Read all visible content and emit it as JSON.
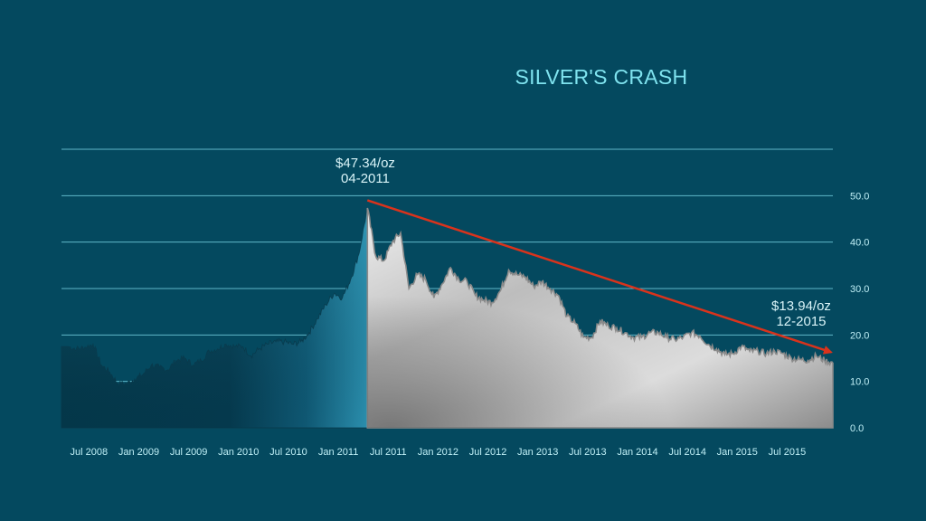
{
  "chart_data": {
    "type": "area",
    "title": "SILVER'S CRASH",
    "xlabel": "",
    "ylabel": "",
    "x_ticks": [
      "Jul 2008",
      "Jan 2009",
      "Jul 2009",
      "Jan 2010",
      "Jul 2010",
      "Jan 2011",
      "Jul 2011",
      "Jan 2012",
      "Jul 2012",
      "Jan 2013",
      "Jul 2013",
      "Jan 2014",
      "Jul 2014",
      "Jan 2015",
      "Jul 2015"
    ],
    "y_ticks": [
      "0.0",
      "10.0",
      "20.0",
      "30.0",
      "40.0",
      "50.0"
    ],
    "ylim": [
      0,
      60
    ],
    "y_axis_position": "right",
    "grid": true,
    "series": [
      {
        "x": [
          "2008-04",
          "2008-05",
          "2008-06",
          "2008-07",
          "2008-08",
          "2008-09",
          "2008-10",
          "2008-11",
          "2008-12",
          "2009-01",
          "2009-02",
          "2009-03",
          "2009-04",
          "2009-05",
          "2009-06",
          "2009-07",
          "2009-08",
          "2009-09",
          "2009-10",
          "2009-11",
          "2009-12",
          "2010-01",
          "2010-02",
          "2010-03",
          "2010-04",
          "2010-05",
          "2010-06",
          "2010-07",
          "2010-08",
          "2010-09",
          "2010-10",
          "2010-11",
          "2010-12",
          "2011-01",
          "2011-02",
          "2011-03",
          "2011-04",
          "2011-05",
          "2011-06",
          "2011-07",
          "2011-08",
          "2011-09",
          "2011-10",
          "2011-11",
          "2011-12",
          "2012-01",
          "2012-02",
          "2012-03",
          "2012-04",
          "2012-05",
          "2012-06",
          "2012-07",
          "2012-08",
          "2012-09",
          "2012-10",
          "2012-11",
          "2012-12",
          "2013-01",
          "2013-02",
          "2013-03",
          "2013-04",
          "2013-05",
          "2013-06",
          "2013-07",
          "2013-08",
          "2013-09",
          "2013-10",
          "2013-11",
          "2013-12",
          "2014-01",
          "2014-02",
          "2014-03",
          "2014-04",
          "2014-05",
          "2014-06",
          "2014-07",
          "2014-08",
          "2014-09",
          "2014-10",
          "2014-11",
          "2014-12",
          "2015-01",
          "2015-02",
          "2015-03",
          "2015-04",
          "2015-05",
          "2015-06",
          "2015-07",
          "2015-08",
          "2015-09",
          "2015-10",
          "2015-11",
          "2015-12"
        ],
        "values": [
          17.5,
          17.0,
          17.3,
          18.0,
          13.5,
          12.0,
          9.5,
          9.5,
          10.5,
          11.5,
          13.5,
          13.0,
          12.5,
          14.5,
          15.0,
          13.5,
          14.5,
          16.5,
          17.0,
          18.0,
          17.5,
          17.5,
          15.5,
          17.0,
          18.0,
          18.5,
          18.5,
          18.0,
          18.5,
          20.5,
          23.5,
          26.5,
          29.0,
          28.0,
          32.0,
          37.5,
          47.34,
          37.0,
          36.0,
          40.0,
          42.0,
          30.0,
          33.0,
          32.0,
          28.0,
          31.0,
          34.5,
          32.0,
          31.5,
          28.5,
          27.5,
          27.0,
          29.5,
          34.0,
          33.0,
          32.5,
          30.5,
          31.5,
          30.0,
          28.5,
          24.0,
          22.5,
          19.5,
          19.5,
          23.0,
          22.0,
          21.5,
          20.5,
          19.5,
          19.5,
          20.5,
          20.5,
          19.5,
          19.0,
          19.5,
          20.5,
          19.8,
          18.0,
          17.0,
          15.8,
          16.0,
          17.5,
          16.5,
          16.5,
          16.0,
          16.5,
          16.0,
          15.0,
          14.7,
          14.5,
          15.5,
          14.5,
          13.94
        ]
      }
    ],
    "highlight_start": "2011-04",
    "annotations": {
      "peak": {
        "price": "$47.34/oz",
        "date": "04-2011"
      },
      "end": {
        "price": "$13.94/oz",
        "date": "12-2015"
      }
    },
    "trend_arrow": {
      "from": {
        "x": "2011-04",
        "y": 49
      },
      "to": {
        "x": "2015-12",
        "y": 16.3
      }
    },
    "colors": {
      "background": "#04495f",
      "title": "#7fe3ef",
      "grid": "#5fb8c9",
      "tick_labels": "#bfeff6",
      "dark_area": "#043547",
      "blue_area": "#2b8fae",
      "gray_area": "#d4d4d4",
      "arrow": "#d9331c"
    }
  }
}
